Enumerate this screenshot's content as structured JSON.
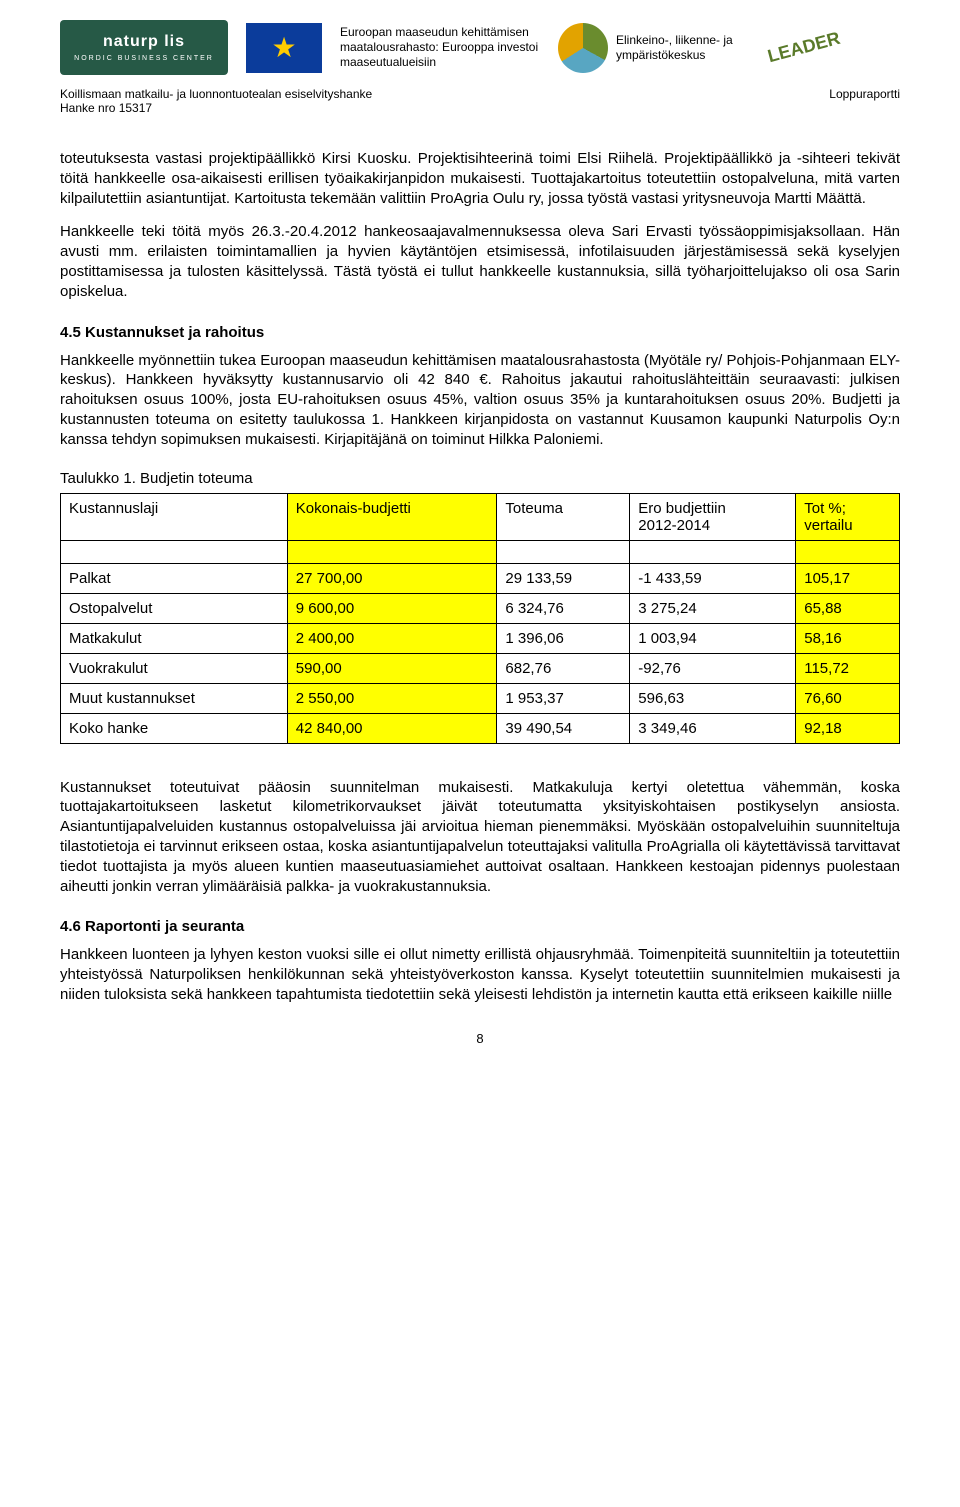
{
  "header": {
    "naturpolis_brand": "naturp  lis",
    "naturpolis_sub": "NORDIC BUSINESS CENTER",
    "eu_text": "Euroopan maaseudun kehittämisen maatalousrahasto: Eurooppa investoi maaseutualueisiin",
    "ely_text": "Elinkeino-, liikenne- ja ympäristökeskus",
    "leader": "LEADER",
    "subtitle_left_line1": "Koillismaan matkailu- ja luonnontuotealan esiselvityshanke",
    "subtitle_left_line2": "Hanke nro 15317",
    "subtitle_right": "Loppuraportti"
  },
  "paragraphs": {
    "p1": "toteutuksesta vastasi projektipäällikkö Kirsi Kuosku. Projektisihteerinä toimi Elsi Riihelä. Projektipäällikkö ja -sihteeri tekivät töitä hankkeelle osa-aikaisesti erillisen työaikakirjanpidon mukaisesti. Tuottajakartoitus toteutettiin ostopalveluna, mitä varten kilpailutettiin asiantuntijat. Kartoitusta tekemään valittiin ProAgria Oulu ry, jossa työstä vastasi yritysneuvoja Martti Määttä.",
    "p2": "Hankkeelle teki töitä myös 26.3.-20.4.2012 hankeosaajavalmennuksessa oleva Sari Ervasti työssäoppimisjaksollaan. Hän avusti mm. erilaisten toimintamallien ja hyvien käytäntöjen etsimisessä, infotilaisuuden järjestämisessä sekä kyselyjen postittamisessa ja tulosten käsittelyssä. Tästä työstä ei tullut hankkeelle kustannuksia, sillä työharjoittelujakso oli osa Sarin opiskelua.",
    "p3": "Hankkeelle myönnettiin tukea Euroopan maaseudun kehittämisen maatalousrahastosta (Myötäle ry/ Pohjois-Pohjanmaan ELY-keskus). Hankkeen hyväksytty kustannusarvio oli 42 840 €. Rahoitus jakautui rahoituslähteittäin seuraavasti: julkisen rahoituksen osuus 100%, josta EU-rahoituksen osuus 45%, valtion osuus 35% ja kuntarahoituksen osuus 20%. Budjetti ja kustannusten toteuma on esitetty taulukossa 1. Hankkeen kirjanpidosta on vastannut Kuusamon kaupunki Naturpolis Oy:n kanssa tehdyn sopimuksen mukaisesti. Kirjapitäjänä on toiminut Hilkka Paloniemi.",
    "p4": "Kustannukset toteutuivat pääosin suunnitelman mukaisesti. Matkakuluja kertyi oletettua vähemmän, koska tuottajakartoitukseen lasketut kilometrikorvaukset jäivät toteutumatta yksityiskohtaisen postikyselyn ansiosta. Asiantuntijapalveluiden kustannus ostopalveluissa jäi arvioitua hieman pienemmäksi. Myöskään ostopalveluihin suunniteltuja tilastotietoja ei tarvinnut erikseen ostaa, koska asiantuntijapalvelun toteuttajaksi valitulla ProAgrialla oli käytettävissä tarvittavat tiedot tuottajista ja myös alueen kuntien maaseutuasiamiehet auttoivat osaltaan. Hankkeen kestoajan pidennys puolestaan aiheutti jonkin verran ylimääräisiä palkka- ja vuokrakustannuksia.",
    "p5": "Hankkeen luonteen ja lyhyen keston vuoksi sille ei ollut nimetty erillistä ohjausryhmää. Toimenpiteitä suunniteltiin ja toteutettiin yhteistyössä Naturpoliksen henkilökunnan sekä yhteistyöverkoston kanssa. Kyselyt toteutettiin suunnitelmien mukaisesti ja niiden tuloksista sekä hankkeen tapahtumista tiedotettiin sekä yleisesti lehdistön ja internetin kautta että erikseen kaikille niille"
  },
  "sections": {
    "s45": "4.5 Kustannukset ja rahoitus",
    "s46": "4.6 Raportonti ja seuranta"
  },
  "table": {
    "caption": "Taulukko 1. Budjetin toteuma",
    "headers": {
      "c0": "Kustannuslaji",
      "c1": "Kokonais-budjetti",
      "c2": "Toteuma",
      "c3_a": "Ero budjettiin",
      "c3_b": "2012-2014",
      "c4_a": "Tot %;",
      "c4_b": "vertailu"
    },
    "rows": [
      {
        "name": "Palkat",
        "budget": "27 700,00",
        "actual": "29 133,59",
        "diff": "-1 433,59",
        "pct": "105,17"
      },
      {
        "name": "Ostopalvelut",
        "budget": "9 600,00",
        "actual": "6 324,76",
        "diff": "3 275,24",
        "pct": "65,88"
      },
      {
        "name": "Matkakulut",
        "budget": "2 400,00",
        "actual": "1 396,06",
        "diff": "1 003,94",
        "pct": "58,16"
      },
      {
        "name": "Vuokrakulut",
        "budget": "590,00",
        "actual": "682,76",
        "diff": "-92,76",
        "pct": "115,72"
      },
      {
        "name": "Muut kustannukset",
        "budget": "2 550,00",
        "actual": "1 953,37",
        "diff": "596,63",
        "pct": "76,60"
      }
    ],
    "total": {
      "name": "Koko hanke",
      "budget": "42 840,00",
      "actual": "39 490,54",
      "diff": "3 349,46",
      "pct": "92,18"
    }
  },
  "page_number": "8",
  "colors": {
    "highlight": "#ffff00",
    "naturpolis_bg": "#265946",
    "eu_bg": "#0b3c9b"
  }
}
